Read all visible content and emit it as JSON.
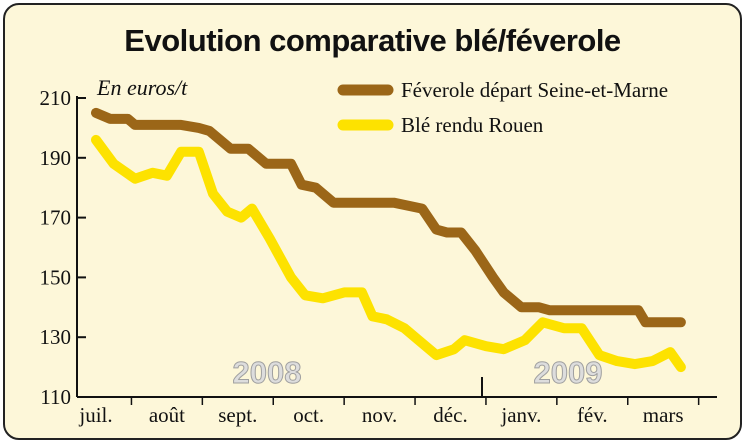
{
  "chart_data": {
    "type": "line",
    "title": "Evolution comparative blé/féverole",
    "unit_label": "En euros/t",
    "ylim": [
      110,
      210
    ],
    "y_ticks": [
      110,
      130,
      150,
      170,
      190,
      210
    ],
    "months": [
      "juil.",
      "août",
      "sept.",
      "oct.",
      "nov.",
      "déc.",
      "janv.",
      "fév.",
      "mars"
    ],
    "year_labels": [
      "2008",
      "2009"
    ],
    "series": [
      {
        "name": "Féverole départ Seine-et-Marne",
        "color": "#9b6618",
        "x": [
          0.0,
          0.2,
          0.45,
          0.55,
          0.8,
          1.0,
          1.2,
          1.45,
          1.6,
          1.9,
          2.15,
          2.4,
          2.45,
          2.75,
          2.9,
          3.1,
          3.35,
          3.45,
          4.0,
          4.2,
          4.6,
          4.8,
          4.95,
          5.15,
          5.35,
          5.6,
          5.75,
          6.0,
          6.25,
          6.4,
          7.0,
          7.65,
          7.75,
          8.25
        ],
        "values": [
          205,
          203,
          203,
          201,
          201,
          201,
          201,
          200,
          199,
          193,
          193,
          188,
          188,
          188,
          181,
          180,
          175,
          175,
          175,
          175,
          173,
          166,
          165,
          165,
          159,
          150,
          145,
          140,
          140,
          139,
          139,
          139,
          135,
          135
        ]
      },
      {
        "name": "Blé rendu Rouen",
        "color": "#fde200",
        "x": [
          0.0,
          0.25,
          0.55,
          0.8,
          1.0,
          1.2,
          1.45,
          1.65,
          1.85,
          2.05,
          2.2,
          2.45,
          2.75,
          2.95,
          3.2,
          3.5,
          3.75,
          3.9,
          4.1,
          4.35,
          4.55,
          4.8,
          5.05,
          5.2,
          5.5,
          5.75,
          6.05,
          6.3,
          6.6,
          6.85,
          7.1,
          7.35,
          7.6,
          7.85,
          8.1,
          8.25
        ],
        "values": [
          196,
          188,
          183,
          185,
          184,
          192,
          192,
          178,
          172,
          170,
          173,
          163,
          150,
          144,
          143,
          145,
          145,
          137,
          136,
          133,
          129,
          124,
          126,
          129,
          127,
          126,
          129,
          135,
          133,
          133,
          124,
          122,
          121,
          122,
          125,
          120
        ]
      }
    ]
  }
}
